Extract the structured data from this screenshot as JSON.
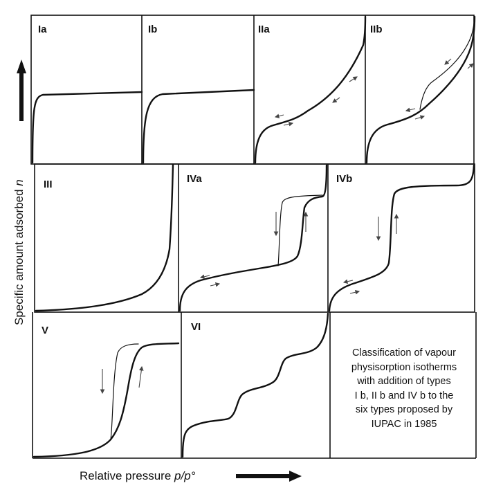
{
  "panels": [
    {
      "id": "Ia",
      "label": "Ia"
    },
    {
      "id": "Ib",
      "label": "Ib"
    },
    {
      "id": "IIa",
      "label": "IIa"
    },
    {
      "id": "IIb",
      "label": "IIb"
    },
    {
      "id": "III",
      "label": "III"
    },
    {
      "id": "IVa",
      "label": "IVa"
    },
    {
      "id": "IVb",
      "label": "IVb"
    },
    {
      "id": "V",
      "label": "V"
    },
    {
      "id": "VI",
      "label": "VI"
    }
  ],
  "y_axis": {
    "text": "Specific amount adsorbed ",
    "variable": "n"
  },
  "x_axis": {
    "text": "Relative pressure ",
    "variable": "p/p°"
  },
  "caption_lines": [
    "Classification of vapour",
    "physisorption isotherms",
    "with addition of types",
    "I b, II b and IV b to the",
    "six types proposed by",
    "IUPAC in 1985"
  ],
  "colors": {
    "ink": "#111111",
    "arrow": "#333333",
    "faint_arrow": "#777777"
  }
}
